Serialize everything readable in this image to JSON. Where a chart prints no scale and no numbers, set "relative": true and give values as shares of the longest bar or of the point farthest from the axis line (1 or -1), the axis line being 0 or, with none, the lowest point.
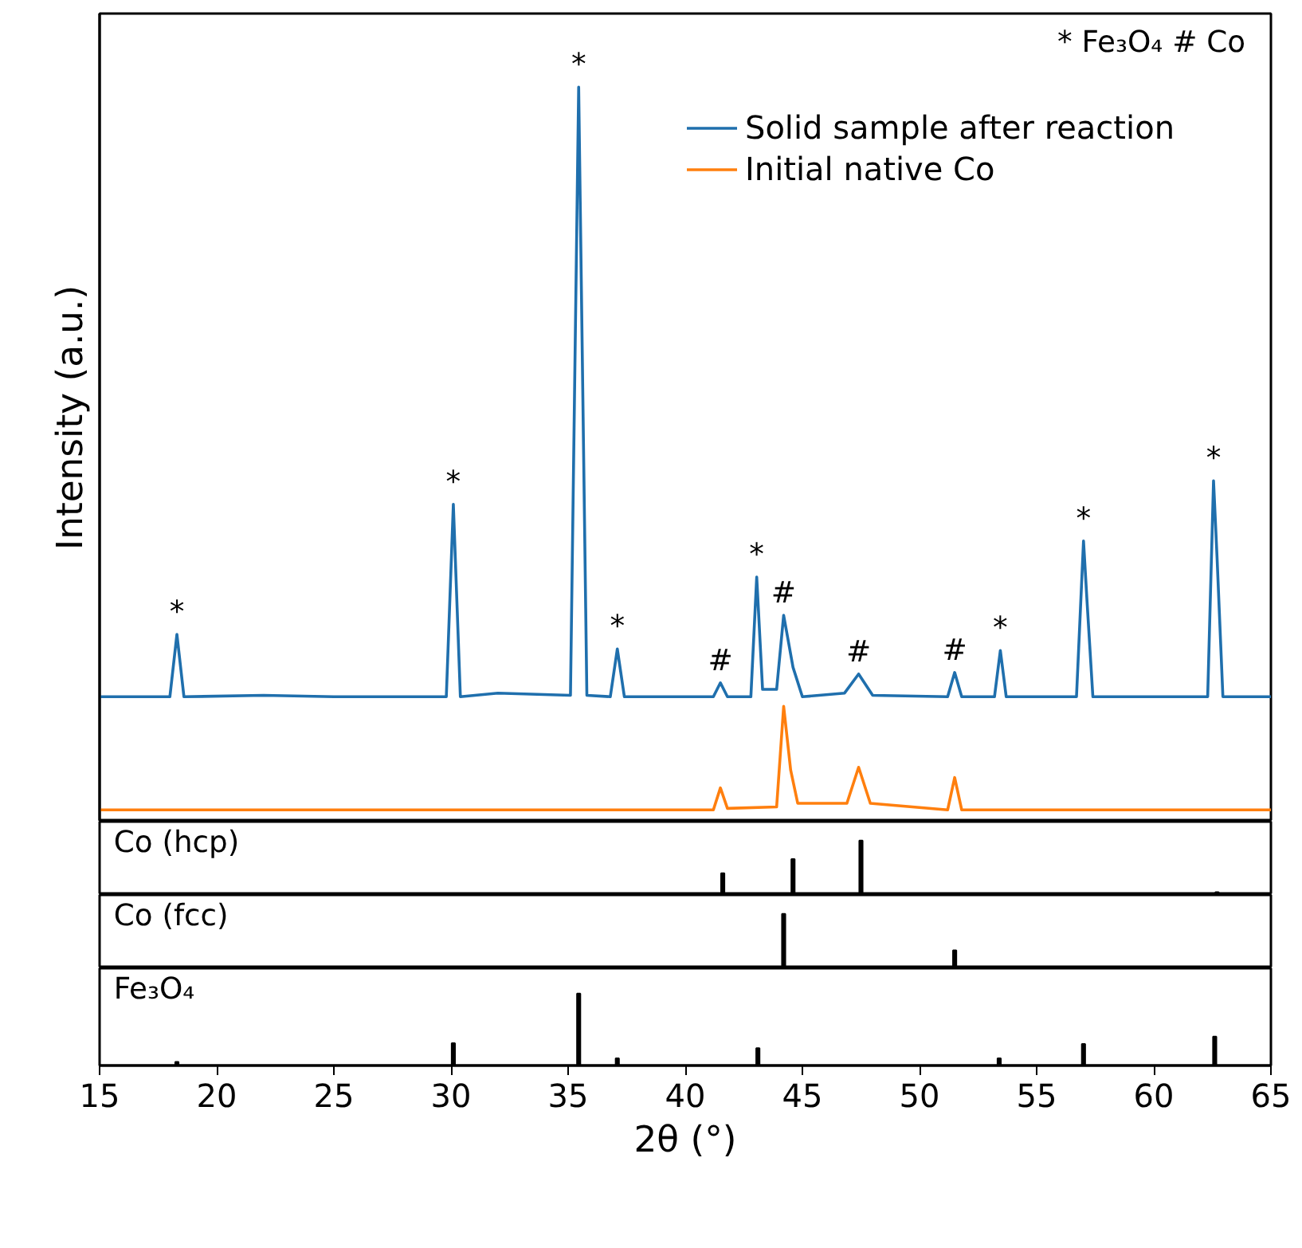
{
  "chart_data": [
    {
      "type": "line",
      "relative": true,
      "xlim": [
        15,
        65
      ],
      "tick_labels": false,
      "ylabel": "Intensity (a.u.)",
      "legend": "top right",
      "series": [
        {
          "name": "Solid sample after reaction",
          "color": "#1f6fad",
          "x": [
            15,
            17,
            18.0,
            18.3,
            18.6,
            22,
            25,
            28,
            29.8,
            30.1,
            30.4,
            32,
            35.1,
            35.45,
            35.8,
            36.8,
            37.1,
            37.4,
            41.2,
            41.5,
            41.8,
            42.8,
            43.05,
            43.3,
            43.9,
            44.2,
            44.6,
            45.0,
            46.8,
            47.4,
            48.0,
            51.2,
            51.5,
            51.8,
            53.2,
            53.45,
            53.7,
            56.7,
            57.0,
            57.15,
            57.4,
            62.3,
            62.55,
            62.7,
            62.95,
            65
          ],
          "values": [
            0.17,
            0.17,
            0.17,
            0.255,
            0.17,
            0.172,
            0.17,
            0.17,
            0.17,
            0.432,
            0.17,
            0.175,
            0.172,
            1.0,
            0.172,
            0.17,
            0.235,
            0.17,
            0.17,
            0.189,
            0.17,
            0.17,
            0.333,
            0.18,
            0.18,
            0.281,
            0.21,
            0.17,
            0.175,
            0.201,
            0.172,
            0.17,
            0.203,
            0.17,
            0.17,
            0.233,
            0.17,
            0.17,
            0.382,
            0.3,
            0.17,
            0.17,
            0.464,
            0.36,
            0.17,
            0.17
          ]
        },
        {
          "name": "Initial native Co",
          "color": "#ff7f0e",
          "x": [
            15,
            41.2,
            41.5,
            41.8,
            43.9,
            44.2,
            44.5,
            44.8,
            46.9,
            47.4,
            47.9,
            51.2,
            51.5,
            51.8,
            65
          ],
          "values": [
            0.016,
            0.016,
            0.046,
            0.018,
            0.02,
            0.157,
            0.07,
            0.025,
            0.025,
            0.074,
            0.025,
            0.016,
            0.06,
            0.016,
            0.016
          ]
        }
      ],
      "annotations": [
        "* Fe₃O₄  # Co",
        {
          "text": "*",
          "x": 18.3,
          "y": 0.255
        },
        {
          "text": "*",
          "x": 30.1,
          "y": 0.432
        },
        {
          "text": "*",
          "x": 35.45,
          "y": 1.0
        },
        {
          "text": "*",
          "x": 37.1,
          "y": 0.235
        },
        {
          "text": "#",
          "x": 41.5,
          "y": 0.189
        },
        {
          "text": "*",
          "x": 43.05,
          "y": 0.333
        },
        {
          "text": "#",
          "x": 44.2,
          "y": 0.281
        },
        {
          "text": "#",
          "x": 47.4,
          "y": 0.201
        },
        {
          "text": "#",
          "x": 51.5,
          "y": 0.203
        },
        {
          "text": "*",
          "x": 53.45,
          "y": 0.233
        },
        {
          "text": "*",
          "x": 57.0,
          "y": 0.382
        },
        {
          "text": "*",
          "x": 62.55,
          "y": 0.464
        }
      ]
    },
    {
      "type": "bar",
      "title": "Co (hcp)",
      "relative": true,
      "xlim": [
        15,
        65
      ],
      "tick_labels": false,
      "color": "#000000",
      "x": [
        41.6,
        44.6,
        47.5,
        62.7
      ],
      "values": [
        0.4,
        0.66,
        1,
        0.05
      ]
    },
    {
      "type": "bar",
      "title": "Co (fcc)",
      "relative": true,
      "xlim": [
        15,
        65
      ],
      "tick_labels": false,
      "color": "#000000",
      "x": [
        44.2,
        51.5
      ],
      "values": [
        1,
        0.33
      ]
    },
    {
      "type": "bar",
      "title": "Fe₃O₄",
      "relative": true,
      "xlim": [
        15,
        65
      ],
      "xticks": [
        15,
        20,
        25,
        30,
        35,
        40,
        45,
        50,
        55,
        60,
        65
      ],
      "tick_labels": "x",
      "xlabel": "2θ (°)",
      "color": "#000000",
      "x": [
        18.3,
        30.1,
        35.45,
        37.1,
        43.1,
        53.4,
        57.0,
        62.6
      ],
      "values": [
        0.05,
        0.31,
        1,
        0.1,
        0.24,
        0.1,
        0.3,
        0.4
      ]
    }
  ]
}
